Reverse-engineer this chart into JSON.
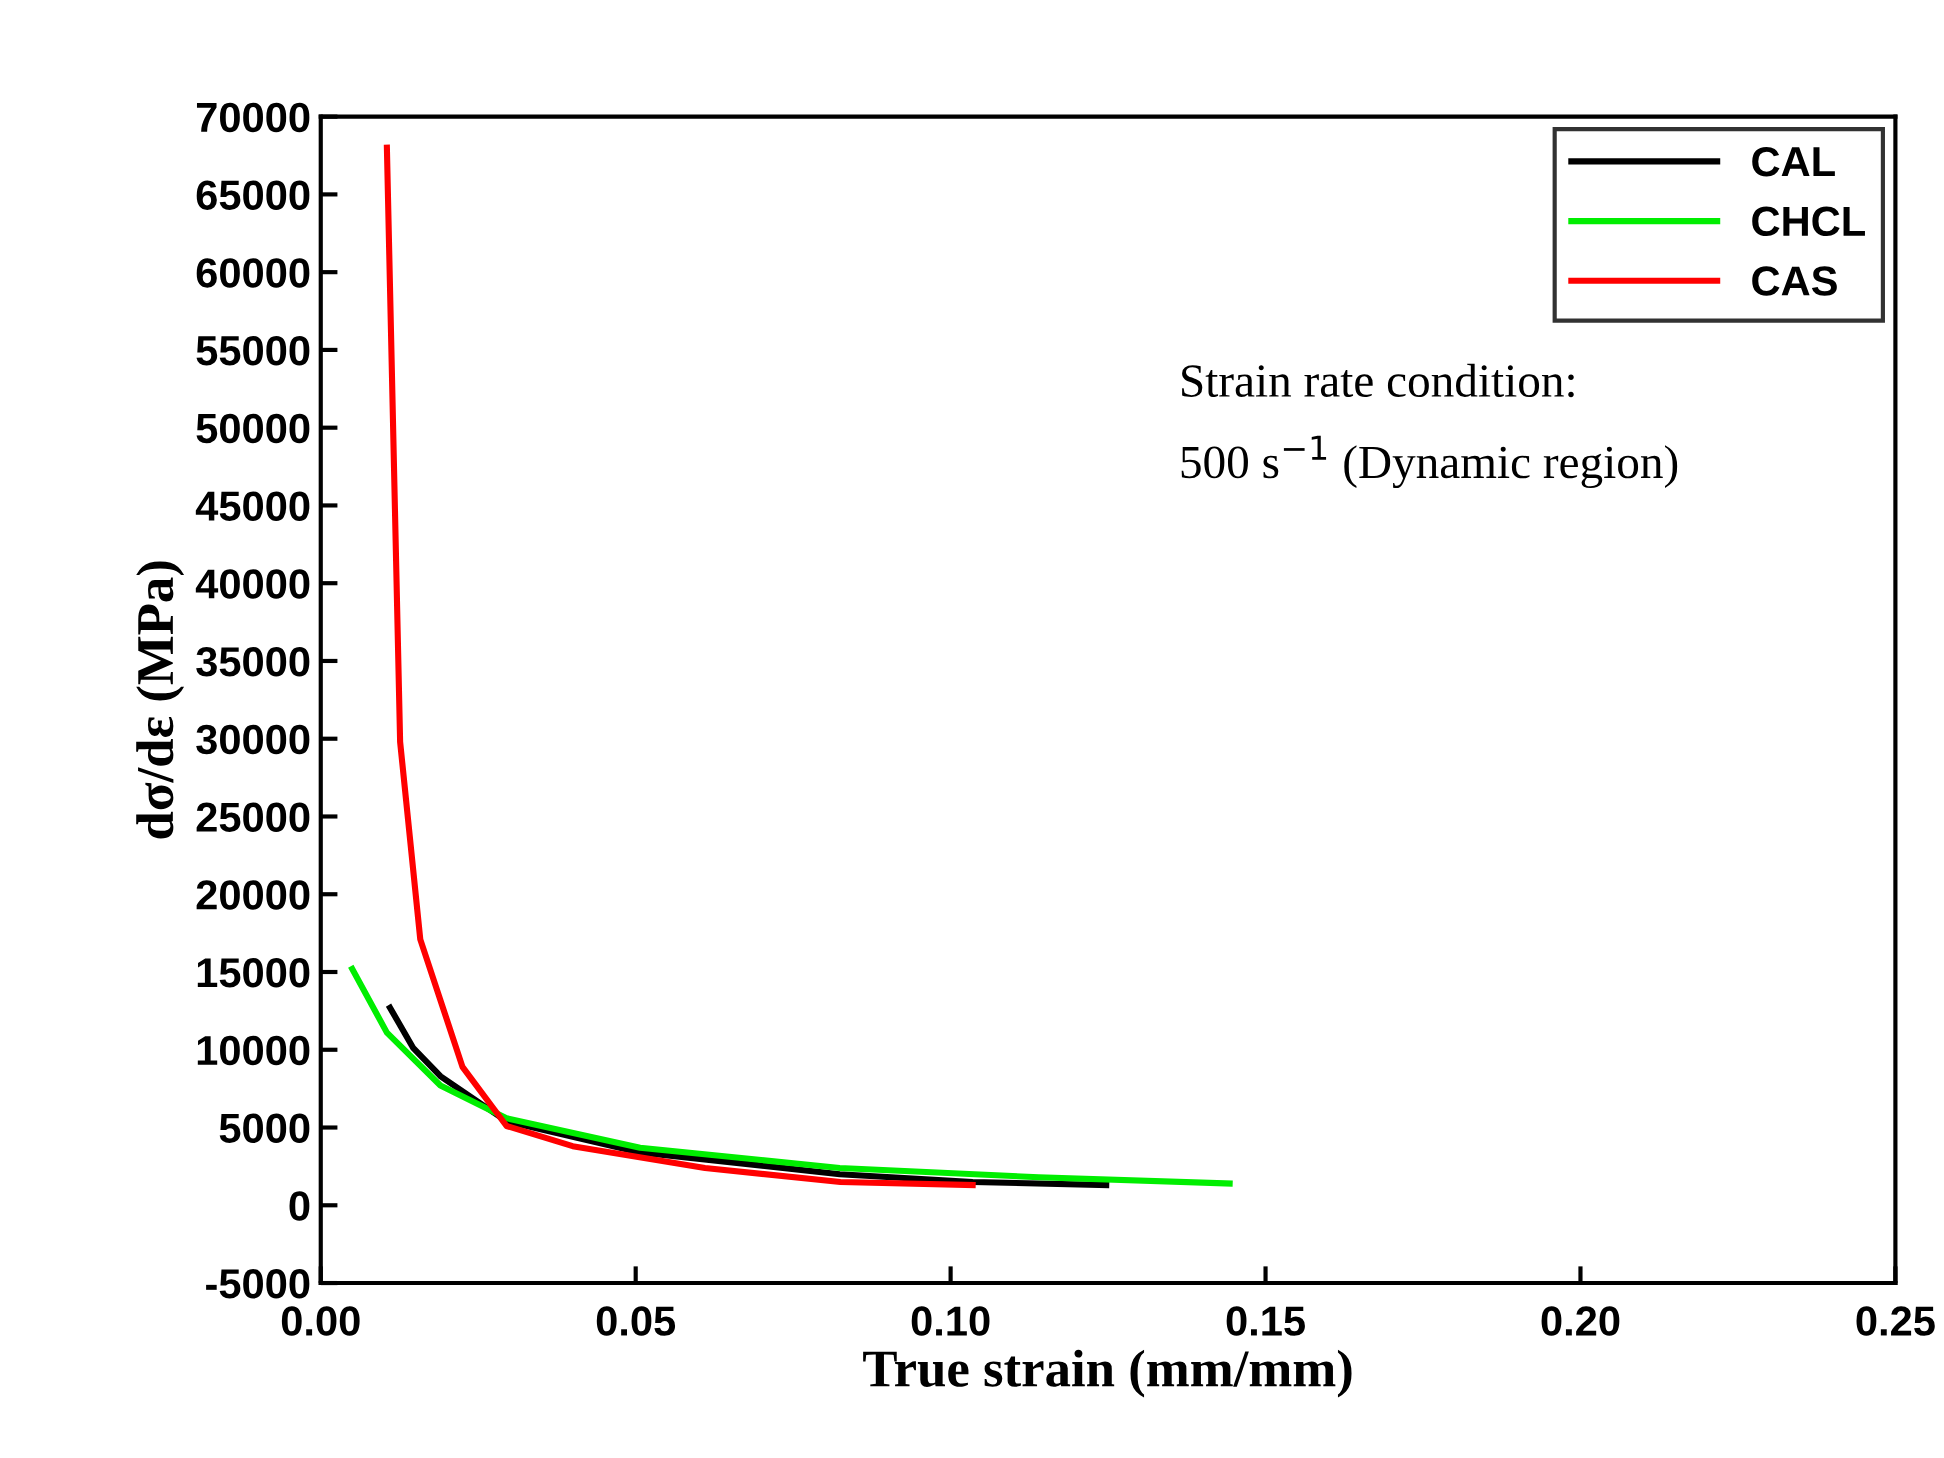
{
  "chart_data": {
    "type": "line",
    "xlabel": "True strain (mm/mm)",
    "ylabel": "dσ/dε (MPa)",
    "xlim": [
      0,
      0.25
    ],
    "ylim": [
      -5000,
      70000
    ],
    "xticks": [
      {
        "value": 0,
        "label": "0.00"
      },
      {
        "value": 0.05,
        "label": "0.05"
      },
      {
        "value": 0.1,
        "label": "0.10"
      },
      {
        "value": 0.15,
        "label": "0.15"
      },
      {
        "value": 0.2,
        "label": "0.20"
      },
      {
        "value": 0.25,
        "label": "0.25"
      }
    ],
    "yticks": [
      -5000,
      0,
      5000,
      10000,
      15000,
      20000,
      25000,
      30000,
      35000,
      40000,
      45000,
      50000,
      55000,
      60000,
      65000,
      70000
    ],
    "grid": false,
    "legend": "top right",
    "marker": "none",
    "line_style": "solid",
    "annotations": [
      "Strain rate condition:",
      "500 s$^{−1}$ (Dynamic region)"
    ],
    "series": [
      {
        "name": "CAL",
        "color": "#000000",
        "x": [
          0.011,
          0.0147,
          0.019,
          0.0295,
          0.0507,
          0.0824,
          0.1035,
          0.1247
        ],
        "values": [
          12700,
          10100,
          8300,
          5400,
          3400,
          2000,
          1500,
          1300
        ]
      },
      {
        "name": "CHCL",
        "color": "#00ee00",
        "x": [
          0.005,
          0.0105,
          0.019,
          0.0295,
          0.0507,
          0.0824,
          0.114,
          0.1443
        ],
        "values": [
          15200,
          11100,
          7700,
          5600,
          3700,
          2400,
          1800,
          1400
        ]
      },
      {
        "name": "CAS",
        "color": "#ff0000",
        "x": [
          0.0105,
          0.0126,
          0.0158,
          0.0225,
          0.0295,
          0.04,
          0.061,
          0.0825,
          0.1035
        ],
        "values": [
          68000,
          29800,
          17100,
          8900,
          5100,
          3800,
          2400,
          1500,
          1300
        ]
      }
    ]
  }
}
